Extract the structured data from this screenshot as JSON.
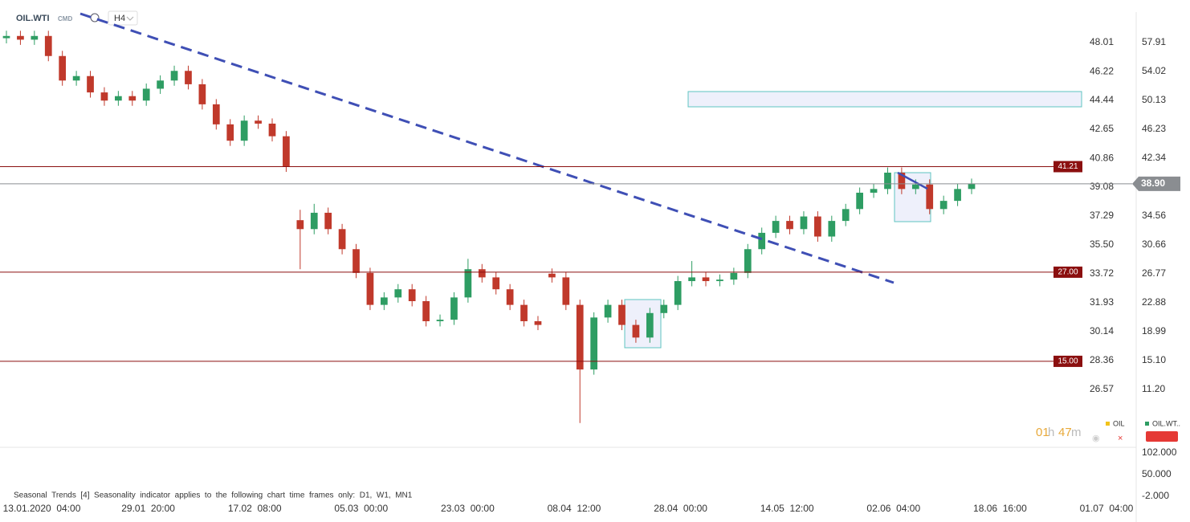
{
  "header": {
    "symbol": "OIL.WTI",
    "tag": "CMD",
    "timeframe": "H4"
  },
  "timer": [
    "01",
    "h",
    "47",
    "m"
  ],
  "chart_data": {
    "type": "candlestick",
    "up_color": "#2e9d63",
    "down_color": "#c0392b",
    "open": [
      58.5,
      58.8,
      58.3,
      58.8,
      56.1,
      52.8,
      53.4,
      51.2,
      50.1,
      50.7,
      50.1,
      51.7,
      52.8,
      54.1,
      52.3,
      49.6,
      46.9,
      44.7,
      47.4,
      47.0,
      45.3,
      34.0,
      32.8,
      35.0,
      32.8,
      30.1,
      26.9,
      22.6,
      23.6,
      24.7,
      23.1,
      20.4,
      20.6,
      23.6,
      27.4,
      26.3,
      24.7,
      22.6,
      20.4,
      26.8,
      26.3,
      22.6,
      13.9,
      20.9,
      22.6,
      19.9,
      18.2,
      21.5,
      22.6,
      25.8,
      26.3,
      25.8,
      26.0,
      26.9,
      30.1,
      32.3,
      33.9,
      32.8,
      34.5,
      31.8,
      33.9,
      35.5,
      37.7,
      38.2,
      40.4,
      38.2,
      38.8,
      35.5,
      36.6,
      38.2
    ],
    "high": [
      59.5,
      59.5,
      59.5,
      59.5,
      56.8,
      54.1,
      54.1,
      51.9,
      51.4,
      51.4,
      52.4,
      53.5,
      54.8,
      54.8,
      53.0,
      50.3,
      47.6,
      48.1,
      48.1,
      47.7,
      46.0,
      35.4,
      36.2,
      35.7,
      33.5,
      30.8,
      27.6,
      24.3,
      25.4,
      25.4,
      23.8,
      21.3,
      24.3,
      28.8,
      28.1,
      27.0,
      25.4,
      23.3,
      21.1,
      27.5,
      27.0,
      23.3,
      21.6,
      23.3,
      23.3,
      20.6,
      22.2,
      23.3,
      26.5,
      28.5,
      27.0,
      26.7,
      27.6,
      30.8,
      33.0,
      34.6,
      34.6,
      35.2,
      35.2,
      34.6,
      36.2,
      38.4,
      38.9,
      41.1,
      41.1,
      39.5,
      39.5,
      37.3,
      38.9,
      39.6
    ],
    "low": [
      57.8,
      57.6,
      57.6,
      55.4,
      52.1,
      52.1,
      50.5,
      49.4,
      49.4,
      49.4,
      49.4,
      51.0,
      52.1,
      51.6,
      48.9,
      46.2,
      44.0,
      44.0,
      46.3,
      44.6,
      40.5,
      27.4,
      32.1,
      32.1,
      29.4,
      26.2,
      21.9,
      21.9,
      22.9,
      22.4,
      19.7,
      19.7,
      19.9,
      22.9,
      25.6,
      24.0,
      21.9,
      19.7,
      19.2,
      25.6,
      21.9,
      6.7,
      13.2,
      20.2,
      19.2,
      17.5,
      17.5,
      20.8,
      21.9,
      25.1,
      25.1,
      25.1,
      25.3,
      26.2,
      29.4,
      31.6,
      32.1,
      32.1,
      31.1,
      31.1,
      33.2,
      34.8,
      37.0,
      37.5,
      37.5,
      37.5,
      34.8,
      34.8,
      35.9,
      37.5
    ],
    "close": [
      58.8,
      58.3,
      58.8,
      56.1,
      52.8,
      53.4,
      51.2,
      50.1,
      50.7,
      50.1,
      51.7,
      52.8,
      54.1,
      52.3,
      49.6,
      46.9,
      44.7,
      47.4,
      47.0,
      45.3,
      41.2,
      32.8,
      35.0,
      32.8,
      30.1,
      26.9,
      22.6,
      23.6,
      24.7,
      23.1,
      20.4,
      20.6,
      23.6,
      27.4,
      26.3,
      24.7,
      22.6,
      20.4,
      19.9,
      26.3,
      22.6,
      13.9,
      20.9,
      22.6,
      19.9,
      18.2,
      21.5,
      22.6,
      25.8,
      26.3,
      25.8,
      26.0,
      26.9,
      30.1,
      32.3,
      33.9,
      32.8,
      34.5,
      31.8,
      33.9,
      35.5,
      37.7,
      38.2,
      40.4,
      38.2,
      38.8,
      35.5,
      36.6,
      38.2,
      38.9
    ],
    "ylim": [
      3.64,
      62.02
    ],
    "yticks": [
      57.91,
      54.02,
      50.13,
      46.23,
      42.34,
      34.56,
      30.66,
      26.77,
      22.88,
      18.99,
      {
        "value": 15.1,
        "label": "15.10"
      },
      {
        "value": 11.2,
        "label": "11.20"
      }
    ],
    "y2lim": [
      23.09,
      49.9
    ],
    "y2ticks": [
      48.01,
      46.22,
      44.44,
      42.65,
      40.86,
      39.08,
      37.29,
      {
        "value": 35.5,
        "label": "35.50"
      },
      33.72,
      31.93,
      30.14,
      28.36,
      26.57
    ],
    "levels": [
      41.21,
      {
        "value": 27,
        "label": "27.00"
      },
      {
        "value": 15,
        "label": "15.00"
      }
    ],
    "level_color": "#8b0f0f",
    "current_price": {
      "value": 38.9,
      "label": "38.90"
    },
    "xtick_labels": [
      "13.01.2020  04:00",
      "29.01  20:00",
      "17.02  08:00",
      "05.03  00:00",
      "23.03  00:00",
      "08.04  12:00",
      "28.04  00:00",
      "14.05  12:00",
      "02.06  04:00",
      "18.06  16:00",
      "01.07  04:00"
    ],
    "legend": [
      {
        "name": "OIL",
        "color": "#f2c31b"
      },
      {
        "name": "OIL.WT..",
        "color": "#2e9d63"
      }
    ]
  },
  "lower_pane": {
    "text": "Seasonal  Trends  [4]  Seasonality  indicator  applies  to  the  following  chart  time  frames  only:  D1,  W1,  MN1",
    "ylim": [
      -15.5,
      115.5
    ],
    "yticks": [
      {
        "value": 102,
        "label": "102.000"
      },
      {
        "value": 50,
        "label": "50.000"
      },
      {
        "value": -2,
        "label": "-2.000"
      }
    ]
  }
}
